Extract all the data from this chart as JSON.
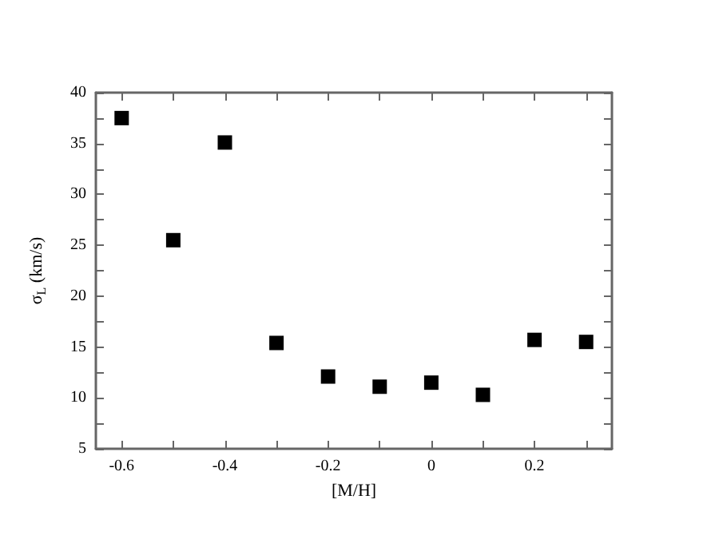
{
  "chart_data": {
    "type": "scatter",
    "xlabel": "[M/H]",
    "ylabel": "σ$_{L}$ (km/s)",
    "x": [
      -0.6,
      -0.5,
      -0.4,
      -0.3,
      -0.2,
      -0.1,
      0,
      0.1,
      0.2,
      0.3
    ],
    "series": [
      {
        "color": "#000000",
        "values": [
          37.5,
          25.5,
          35.1,
          15.4,
          12.1,
          11.1,
          11.5,
          10.3,
          15.7,
          15.5
        ]
      }
    ],
    "xlim": [
      -0.65,
      0.35
    ],
    "xticks": [
      -0.6,
      {
        "value": -0.5,
        "label": null
      },
      -0.4,
      {
        "value": -0.3,
        "label": null
      },
      -0.2,
      {
        "value": -0.1,
        "label": null
      },
      0,
      {
        "value": 0.1,
        "label": null
      },
      0.2,
      {
        "value": 0.3,
        "label": null
      }
    ],
    "ylim": [
      5,
      40
    ],
    "yticks": [
      5,
      {
        "value": 7.5,
        "label": null
      },
      10,
      {
        "value": 12.5,
        "label": null
      },
      15,
      {
        "value": 17.5,
        "label": null
      },
      20,
      {
        "value": 22.5,
        "label": null
      },
      25,
      {
        "value": 27.5,
        "label": null
      },
      30,
      {
        "value": 32.5,
        "label": null
      },
      35,
      {
        "value": 37.5,
        "label": null
      },
      40
    ],
    "marker": "square"
  }
}
